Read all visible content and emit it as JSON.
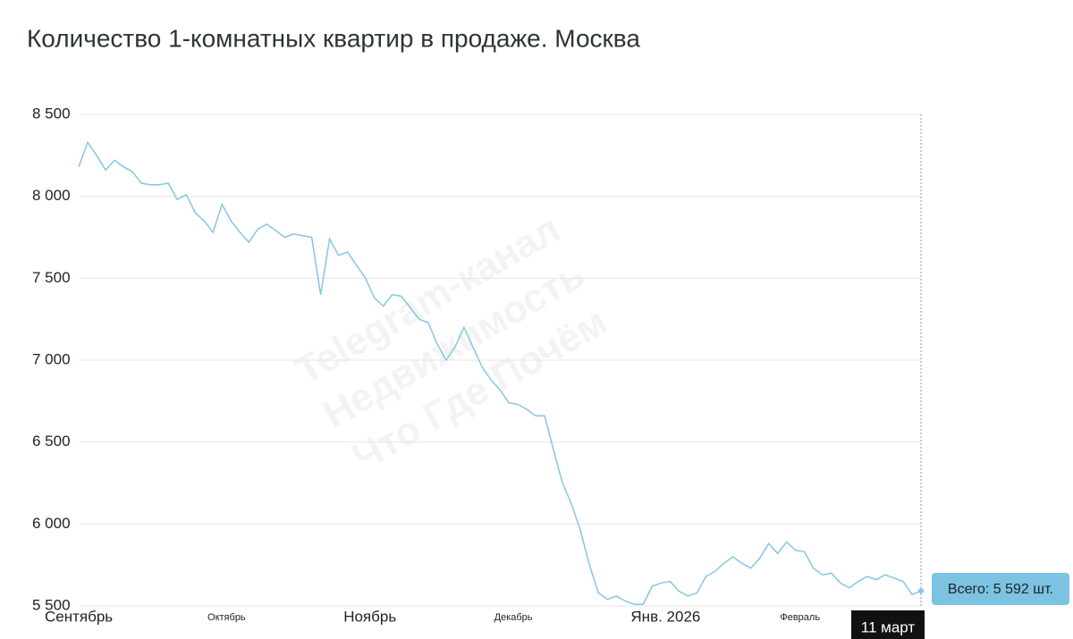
{
  "chart_data": {
    "type": "line",
    "title": "Количество 1-комнатных квартир в продаже. Москва",
    "watermark": [
      "Telegram-канал",
      "Недвижимость",
      "Что Где Почём"
    ],
    "tooltip": "Всего: 5 592 шт.",
    "color": "#84c6e4",
    "grid": true,
    "ylim": [
      5500,
      8500
    ],
    "yticks": [
      {
        "value": 5500,
        "label": "5 500"
      },
      {
        "value": 6000,
        "label": "6 000"
      },
      {
        "value": 6500,
        "label": "6 500"
      },
      {
        "value": 7000,
        "label": "7 000"
      },
      {
        "value": 7500,
        "label": "7 500"
      },
      {
        "value": 8000,
        "label": "8 000"
      },
      {
        "value": 8500,
        "label": "8 500"
      }
    ],
    "categories": [
      "Сентябрь",
      null,
      null,
      null,
      null,
      null,
      null,
      null,
      null,
      null,
      null,
      null,
      null,
      null,
      null,
      null,
      null,
      "Октябрь",
      null,
      null,
      null,
      null,
      null,
      null,
      null,
      null,
      null,
      null,
      null,
      null,
      null,
      null,
      null,
      "Ноябрь",
      null,
      null,
      null,
      null,
      null,
      null,
      null,
      null,
      null,
      null,
      null,
      null,
      null,
      null,
      null,
      "Декабрь",
      null,
      null,
      null,
      null,
      null,
      null,
      null,
      null,
      null,
      null,
      null,
      null,
      null,
      null,
      null,
      null,
      "Янв. 2026",
      null,
      null,
      null,
      null,
      null,
      null,
      null,
      null,
      null,
      null,
      null,
      null,
      null,
      null,
      "Февраль",
      null,
      null,
      null,
      null,
      null,
      null,
      null,
      null,
      null,
      null,
      null,
      null,
      "11 март"
    ],
    "values": [
      8180,
      8330,
      8250,
      8160,
      8220,
      8180,
      8150,
      8080,
      8070,
      8070,
      8080,
      7980,
      8010,
      7900,
      7850,
      7780,
      7950,
      7850,
      7780,
      7720,
      7800,
      7830,
      7790,
      7750,
      7770,
      7760,
      7750,
      7400,
      7740,
      7640,
      7660,
      7580,
      7500,
      7380,
      7330,
      7400,
      7390,
      7320,
      7250,
      7230,
      7100,
      7000,
      7080,
      7200,
      7080,
      6960,
      6880,
      6820,
      6740,
      6730,
      6700,
      6660,
      6660,
      6450,
      6250,
      6120,
      5960,
      5750,
      5580,
      5540,
      5560,
      5530,
      5510,
      5510,
      5620,
      5640,
      5650,
      5590,
      5560,
      5580,
      5680,
      5710,
      5760,
      5800,
      5760,
      5730,
      5790,
      5880,
      5820,
      5890,
      5840,
      5830,
      5730,
      5690,
      5700,
      5640,
      5610,
      5650,
      5680,
      5660,
      5690,
      5670,
      5650,
      5570,
      5592
    ]
  }
}
